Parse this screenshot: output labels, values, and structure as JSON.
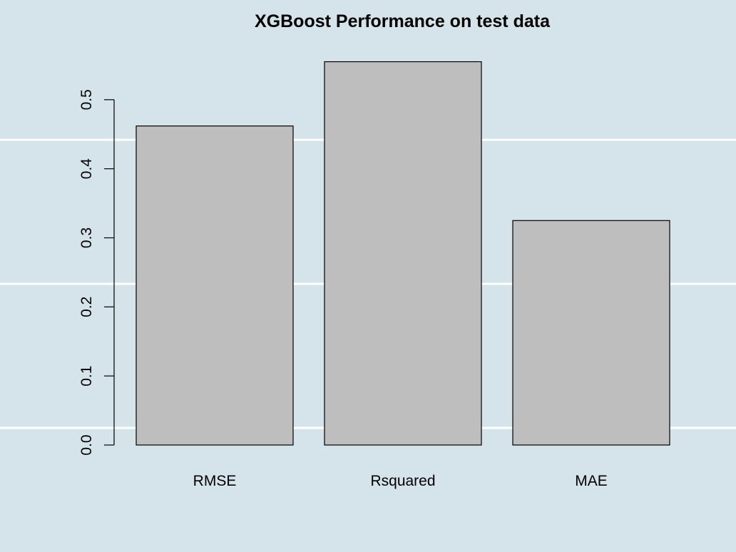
{
  "colors": {
    "background": "#d5e3ea",
    "grid_line": "#ffffff",
    "bar_fill": "#bebebe",
    "bar_stroke": "#000000",
    "axis": "#000000"
  },
  "chart_data": {
    "type": "bar",
    "title": "XGBoost Performance on test data",
    "xlabel": "",
    "ylabel": "",
    "categories": [
      "RMSE",
      "Rsquared",
      "MAE"
    ],
    "values": [
      0.462,
      0.555,
      0.325
    ],
    "ylim": [
      0,
      0.57
    ],
    "yticks": [
      0.0,
      0.1,
      0.2,
      0.3,
      0.4,
      0.5
    ],
    "ytick_labels": [
      "0.0",
      "0.1",
      "0.2",
      "0.3",
      "0.4",
      "0.5"
    ],
    "horizontal_background_lines": true,
    "legend": null
  }
}
